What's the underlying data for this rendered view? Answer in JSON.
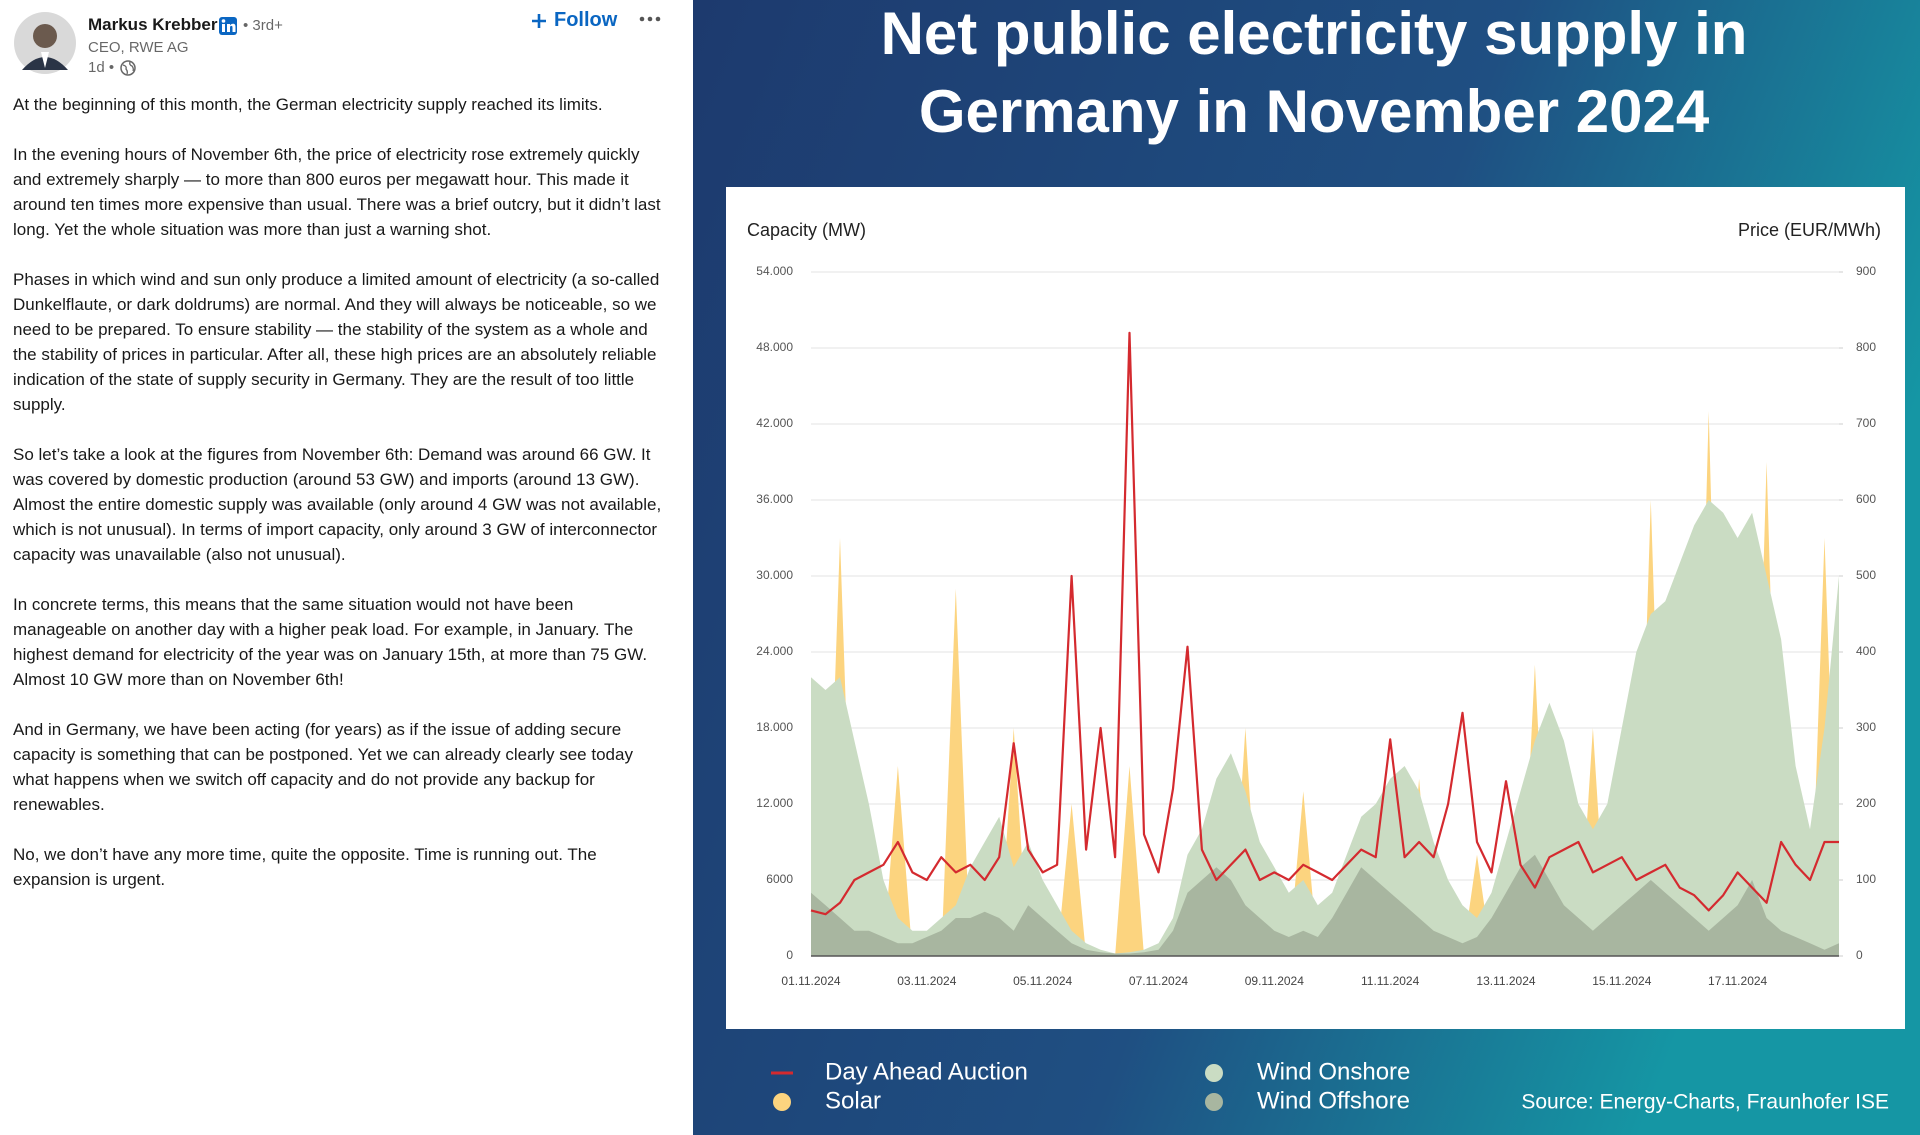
{
  "post": {
    "author": "Markus Krebber",
    "degree": "• 3rd+",
    "headline": "CEO, RWE AG",
    "time": "1d •",
    "follow": "Follow",
    "paragraphs": [
      "At the beginning of this month, the German electricity supply reached its limits.",
      "In the evening hours of November 6th, the price of electricity rose extremely quickly and extremely sharply — to more than 800 euros per megawatt hour. This made it around ten times more expensive than usual. There was a brief outcry, but it didn’t last long. Yet the whole situation was more than just a warning shot.",
      "Phases in which wind and sun only produce a limited amount of electricity (a so-called Dunkelflaute, or dark doldrums) are normal. And they will always be noticeable, so we need to be prepared. To ensure stability — the stability of the system as a whole and the stability of prices in particular. After all, these high prices are an absolutely reliable indication of the state of supply security in Germany. They are the result of too little supply.",
      "So let’s take a look at the figures from November 6th: Demand was around 66 GW. It was covered by domestic production (around 53 GW) and imports (around 13 GW). Almost the entire domestic supply was available (only around 4 GW was not available, which is not unusual). In terms of import capacity, only around 3 GW of interconnector capacity was unavailable (also not unusual).",
      "In concrete terms, this means that the same situation would not have been manageable on another day with a higher peak load. For example, in January. The highest demand for electricity of the year was on January 15th, at more than 75 GW. Almost 10 GW more than on November 6th!",
      "And in Germany, we have been acting (for years) as if the issue of adding secure capacity is something that can be postponed. Yet we can already clearly see today what happens when we switch off capacity and do not provide any backup for renewables.",
      "No, we don’t have any more time, quite the opposite. Time is running out. The expansion is urgent."
    ]
  },
  "chart_data": {
    "type": "area",
    "title": "Net public electricity supply in Germany in November 2024",
    "y_label": "Capacity (MW)",
    "y2_label": "Price (EUR/MWh)",
    "source": "Source: Energy-Charts, Fraunhofer ISE",
    "categories": [
      "01.11.2024",
      null,
      null,
      null,
      null,
      null,
      null,
      null,
      "03.11.2024",
      null,
      null,
      null,
      null,
      null,
      null,
      null,
      "05.11.2024",
      null,
      null,
      null,
      null,
      null,
      null,
      null,
      "07.11.2024",
      null,
      null,
      null,
      null,
      null,
      null,
      null,
      "09.11.2024",
      null,
      null,
      null,
      null,
      null,
      null,
      null,
      "11.11.2024",
      null,
      null,
      null,
      null,
      null,
      null,
      null,
      "13.11.2024",
      null,
      null,
      null,
      null,
      null,
      null,
      null,
      "15.11.2024",
      null,
      null,
      null,
      null,
      null,
      null,
      null,
      "17.11.2024",
      null,
      null,
      null,
      null,
      null,
      null,
      null
    ],
    "ylim": [
      0,
      54000
    ],
    "yticks": [
      0,
      6000,
      {
        "value": 12000,
        "label": "12.000"
      },
      {
        "value": 18000,
        "label": "18.000"
      },
      {
        "value": 24000,
        "label": "24.000"
      },
      {
        "value": 30000,
        "label": "30.000"
      },
      {
        "value": 36000,
        "label": "36.000"
      },
      {
        "value": 42000,
        "label": "42.000"
      },
      {
        "value": 48000,
        "label": "48.000"
      },
      {
        "value": 54000,
        "label": "54.000"
      }
    ],
    "y2lim": [
      0,
      900
    ],
    "y2ticks": [
      0,
      100,
      200,
      300,
      400,
      500,
      600,
      700,
      800,
      900
    ],
    "grid": true,
    "series": [
      {
        "name": "Solar",
        "type": "area",
        "color": "#fcd47f",
        "values": [
          0,
          0,
          33000,
          0,
          0,
          0,
          15000,
          0,
          0,
          0,
          29000,
          0,
          0,
          0,
          18000,
          0,
          0,
          0,
          12000,
          0,
          0,
          0,
          15000,
          0,
          0,
          0,
          5000,
          0,
          0,
          0,
          18000,
          0,
          0,
          0,
          13000,
          0,
          0,
          0,
          7000,
          0,
          0,
          0,
          14000,
          0,
          0,
          0,
          8000,
          0,
          0,
          0,
          23000,
          0,
          0,
          0,
          18000,
          0,
          0,
          0,
          36000,
          0,
          0,
          0,
          43000,
          0,
          0,
          0,
          39000,
          0,
          0,
          0,
          33000,
          0
        ]
      },
      {
        "name": "Wind Onshore",
        "type": "area",
        "color": "#cadcc3",
        "values": [
          22000,
          21000,
          22000,
          17000,
          12000,
          6000,
          3000,
          2000,
          2000,
          3000,
          4000,
          7000,
          9000,
          11000,
          7000,
          9000,
          6000,
          4000,
          2000,
          1000,
          500,
          200,
          300,
          500,
          1000,
          3000,
          8000,
          10000,
          14000,
          16000,
          13000,
          9000,
          7000,
          5000,
          6000,
          4000,
          5000,
          8000,
          11000,
          12000,
          14000,
          15000,
          13000,
          9000,
          6000,
          4000,
          3000,
          5000,
          9000,
          13000,
          17000,
          20000,
          17000,
          12000,
          10000,
          12000,
          18000,
          24000,
          27000,
          28000,
          31000,
          34000,
          36000,
          35000,
          33000,
          35000,
          30000,
          25000,
          15000,
          10000,
          18000,
          30000
        ]
      },
      {
        "name": "Wind Offshore",
        "type": "area",
        "color": "#a8b6a0",
        "values": [
          5000,
          4000,
          3000,
          2000,
          2000,
          1500,
          1000,
          1000,
          1500,
          2000,
          3000,
          3000,
          3500,
          3000,
          2000,
          4000,
          3000,
          2000,
          1000,
          500,
          300,
          200,
          200,
          300,
          500,
          2000,
          5000,
          6000,
          7000,
          6000,
          4000,
          3000,
          2000,
          1500,
          2000,
          1500,
          3000,
          5000,
          7000,
          6000,
          5000,
          4000,
          3000,
          2000,
          1500,
          1000,
          1500,
          3000,
          5000,
          7000,
          8000,
          6000,
          4000,
          3000,
          2000,
          3000,
          4000,
          5000,
          6000,
          5000,
          4000,
          3000,
          2000,
          3000,
          4000,
          6000,
          3000,
          2000,
          1500,
          1000,
          500,
          1000
        ]
      },
      {
        "name": "Day Ahead Auction",
        "type": "line",
        "axis": "y2",
        "color": "#d42a2f",
        "values": [
          60,
          55,
          70,
          100,
          110,
          120,
          150,
          110,
          100,
          130,
          110,
          120,
          100,
          130,
          280,
          140,
          110,
          120,
          500,
          140,
          300,
          130,
          820,
          160,
          110,
          220,
          407,
          140,
          100,
          120,
          140,
          100,
          110,
          100,
          120,
          110,
          100,
          120,
          140,
          130,
          285,
          130,
          150,
          130,
          200,
          320,
          150,
          110,
          230,
          120,
          90,
          130,
          140,
          150,
          110,
          120,
          130,
          100,
          110,
          120,
          90,
          80,
          60,
          80,
          110,
          90,
          70,
          150,
          120,
          100,
          150,
          150
        ]
      }
    ],
    "legend_order": [
      3,
      0,
      1,
      2
    ]
  }
}
